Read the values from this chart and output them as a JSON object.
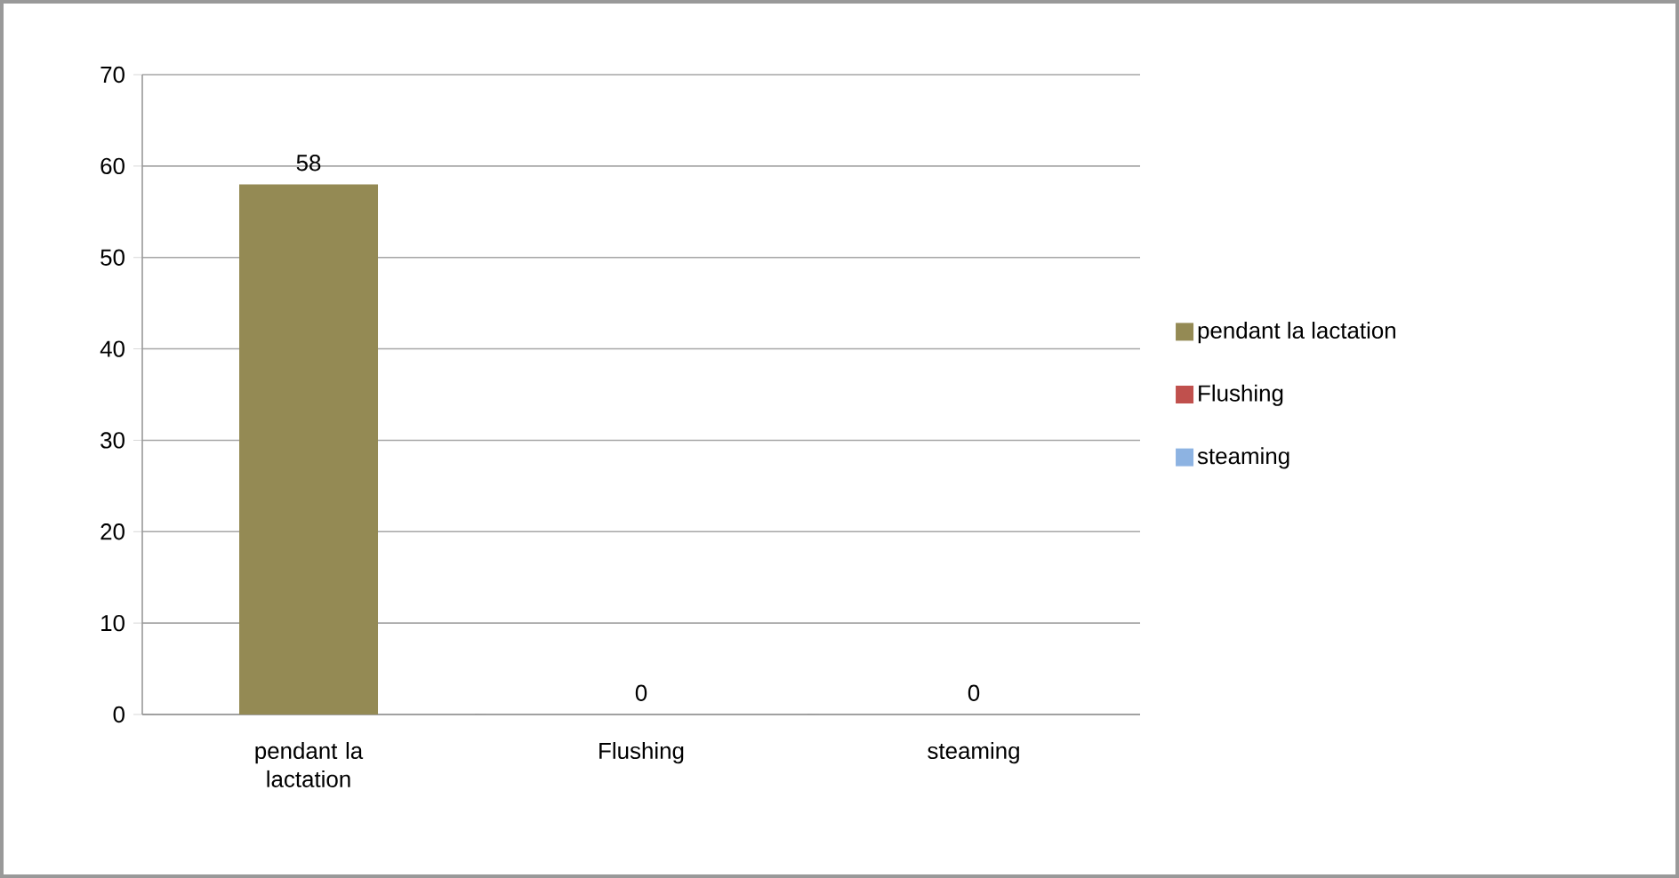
{
  "chart_data": {
    "type": "bar",
    "categories": [
      "pendant la lactation",
      "Flushing",
      "steaming"
    ],
    "series": [
      {
        "name": "pendant la lactation",
        "color": "#948a54",
        "values": [
          58,
          null,
          null
        ]
      },
      {
        "name": "Flushing",
        "color": "#c0504d",
        "values": [
          null,
          0,
          null
        ]
      },
      {
        "name": "steaming",
        "color": "#8db3e2",
        "values": [
          null,
          null,
          0
        ]
      }
    ],
    "ylim": [
      0,
      70
    ],
    "yticks": [
      0,
      10,
      20,
      30,
      40,
      50,
      60,
      70
    ],
    "grid": "y",
    "data_labels": true,
    "legend": "right"
  }
}
